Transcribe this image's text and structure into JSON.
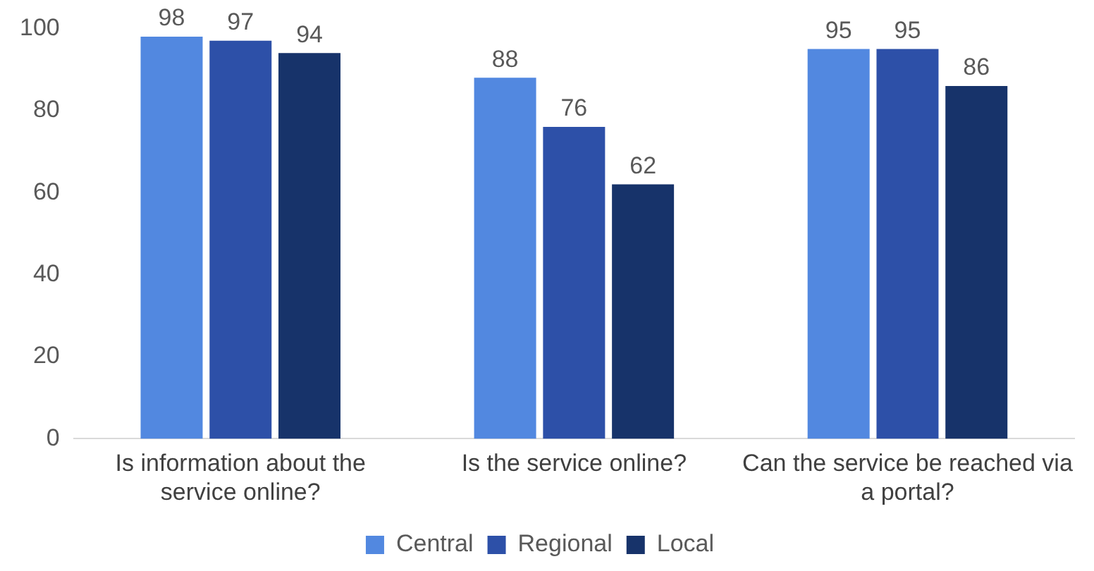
{
  "chart_data": {
    "type": "bar",
    "categories": [
      "Is information about the service online?",
      "Is the service online?",
      "Can the service be reached via a portal?"
    ],
    "series": [
      {
        "name": "Central",
        "color": "#5288e0",
        "values": [
          98,
          88,
          95
        ]
      },
      {
        "name": "Regional",
        "color": "#2d50a8",
        "values": [
          97,
          76,
          95
        ]
      },
      {
        "name": "Local",
        "color": "#17336a",
        "values": [
          94,
          62,
          86
        ]
      }
    ],
    "ylim": [
      0,
      100
    ],
    "yticks": [
      0,
      20,
      40,
      60,
      80,
      100
    ],
    "grid": false,
    "legend": "bottom",
    "data_labels": true
  }
}
